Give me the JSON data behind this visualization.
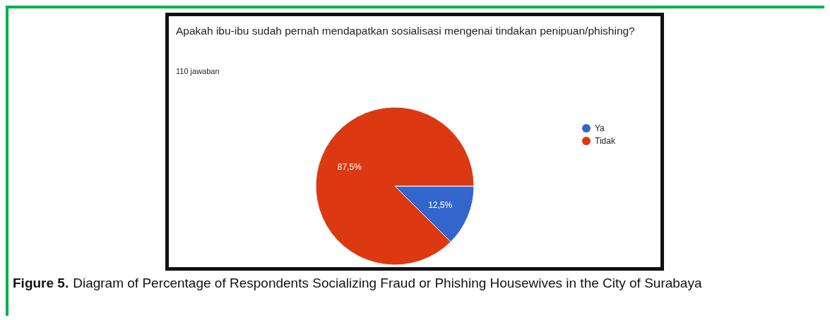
{
  "chart_data": {
    "type": "pie",
    "title": "Apakah ibu-ibu sudah pernah mendapatkan sosialisasi mengenai tindakan penipuan/phishing?",
    "subtitle": "110 jawaban",
    "categories": [
      "Ya",
      "Tidak"
    ],
    "values": [
      12.5,
      87.5
    ],
    "colors": [
      "#3366cc",
      "#dc3912"
    ],
    "value_labels": [
      "12,5%",
      "87,5%"
    ],
    "legend": "right",
    "annotations": [
      "Figure 5. Diagram of Percentage of Respondents Socializing Fraud or Phishing Housewives in the City of Surabaya"
    ]
  }
}
